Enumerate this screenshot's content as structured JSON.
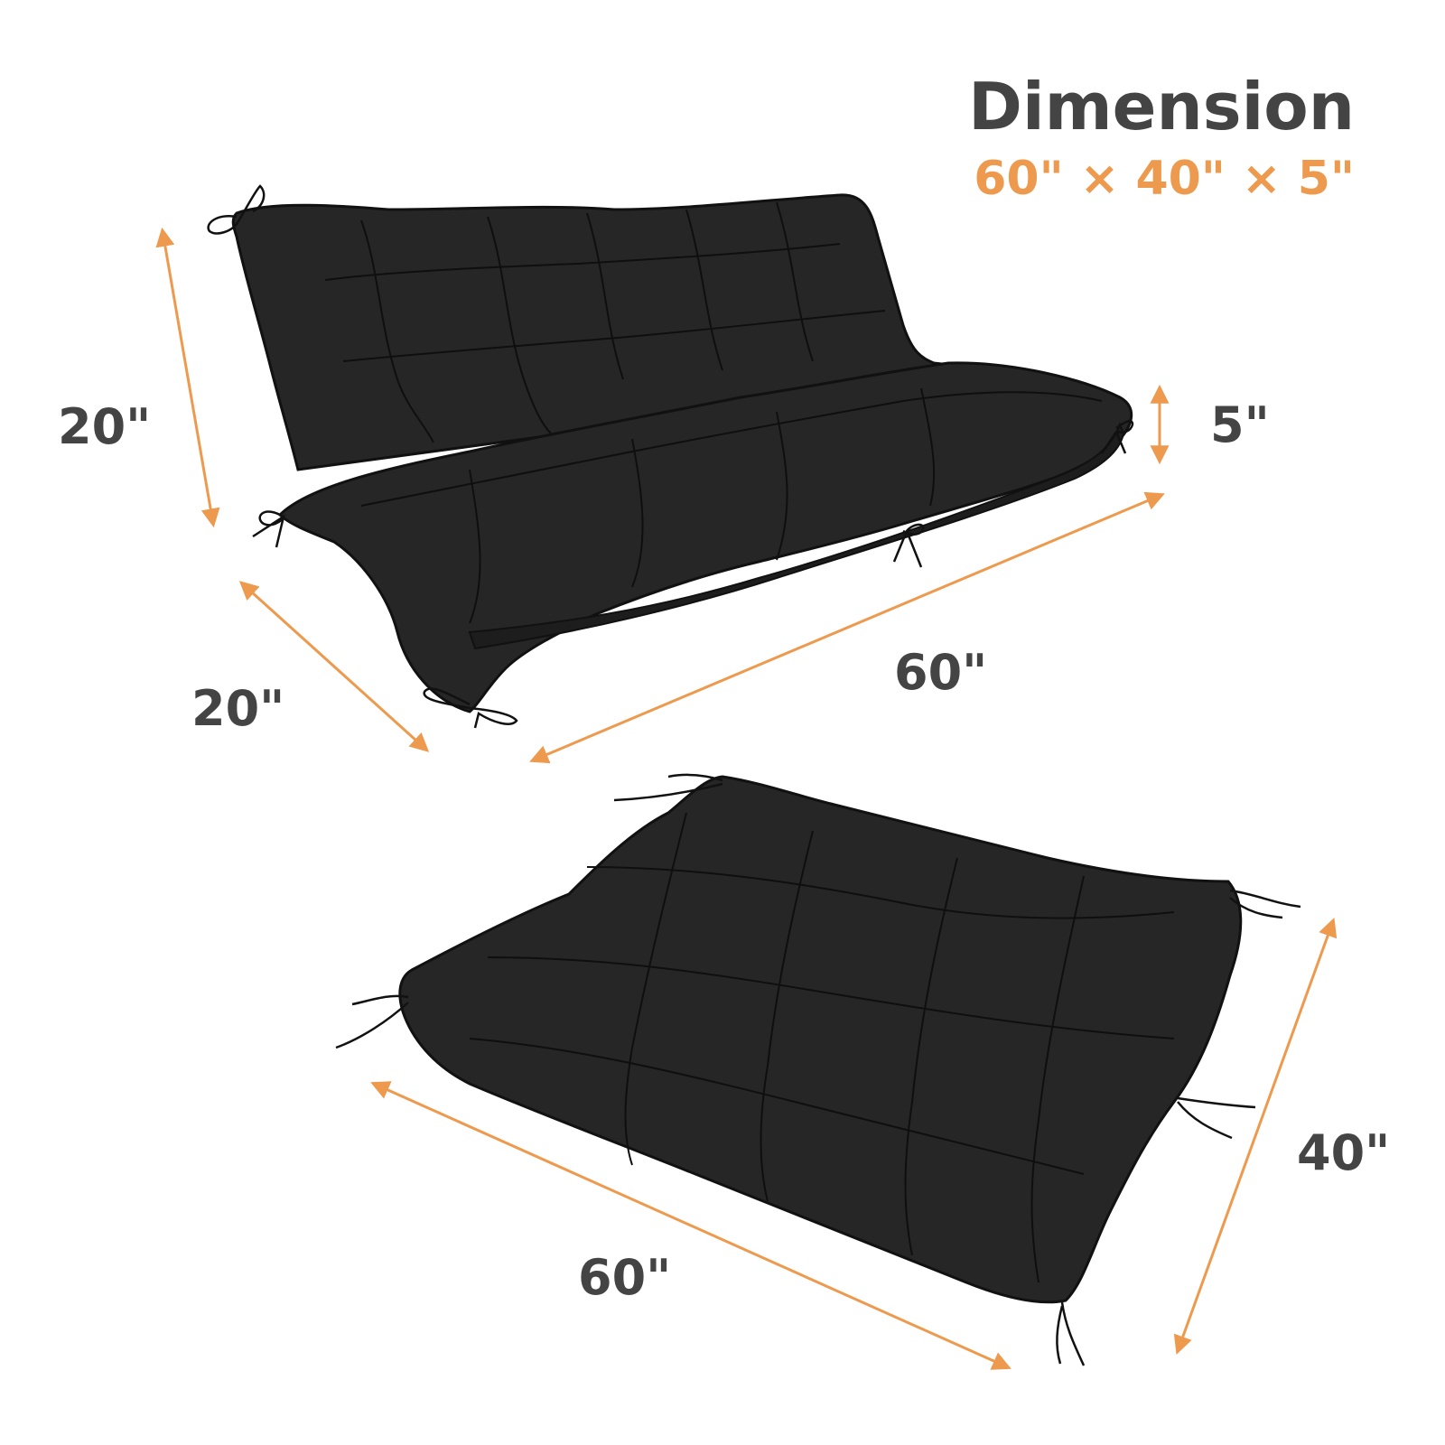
{
  "header": {
    "title": "Dimension",
    "subtitle": "60\" × 40\" × 5\""
  },
  "dimensions": {
    "back_height": "20\"",
    "seat_depth": "20\"",
    "top_width": "60\"",
    "thickness": "5\"",
    "bottom_width": "60\"",
    "bottom_length": "40\""
  },
  "colors": {
    "accent": "#ee9a4e",
    "text": "#444444",
    "cushion": "#262626",
    "background": "#ffffff"
  }
}
